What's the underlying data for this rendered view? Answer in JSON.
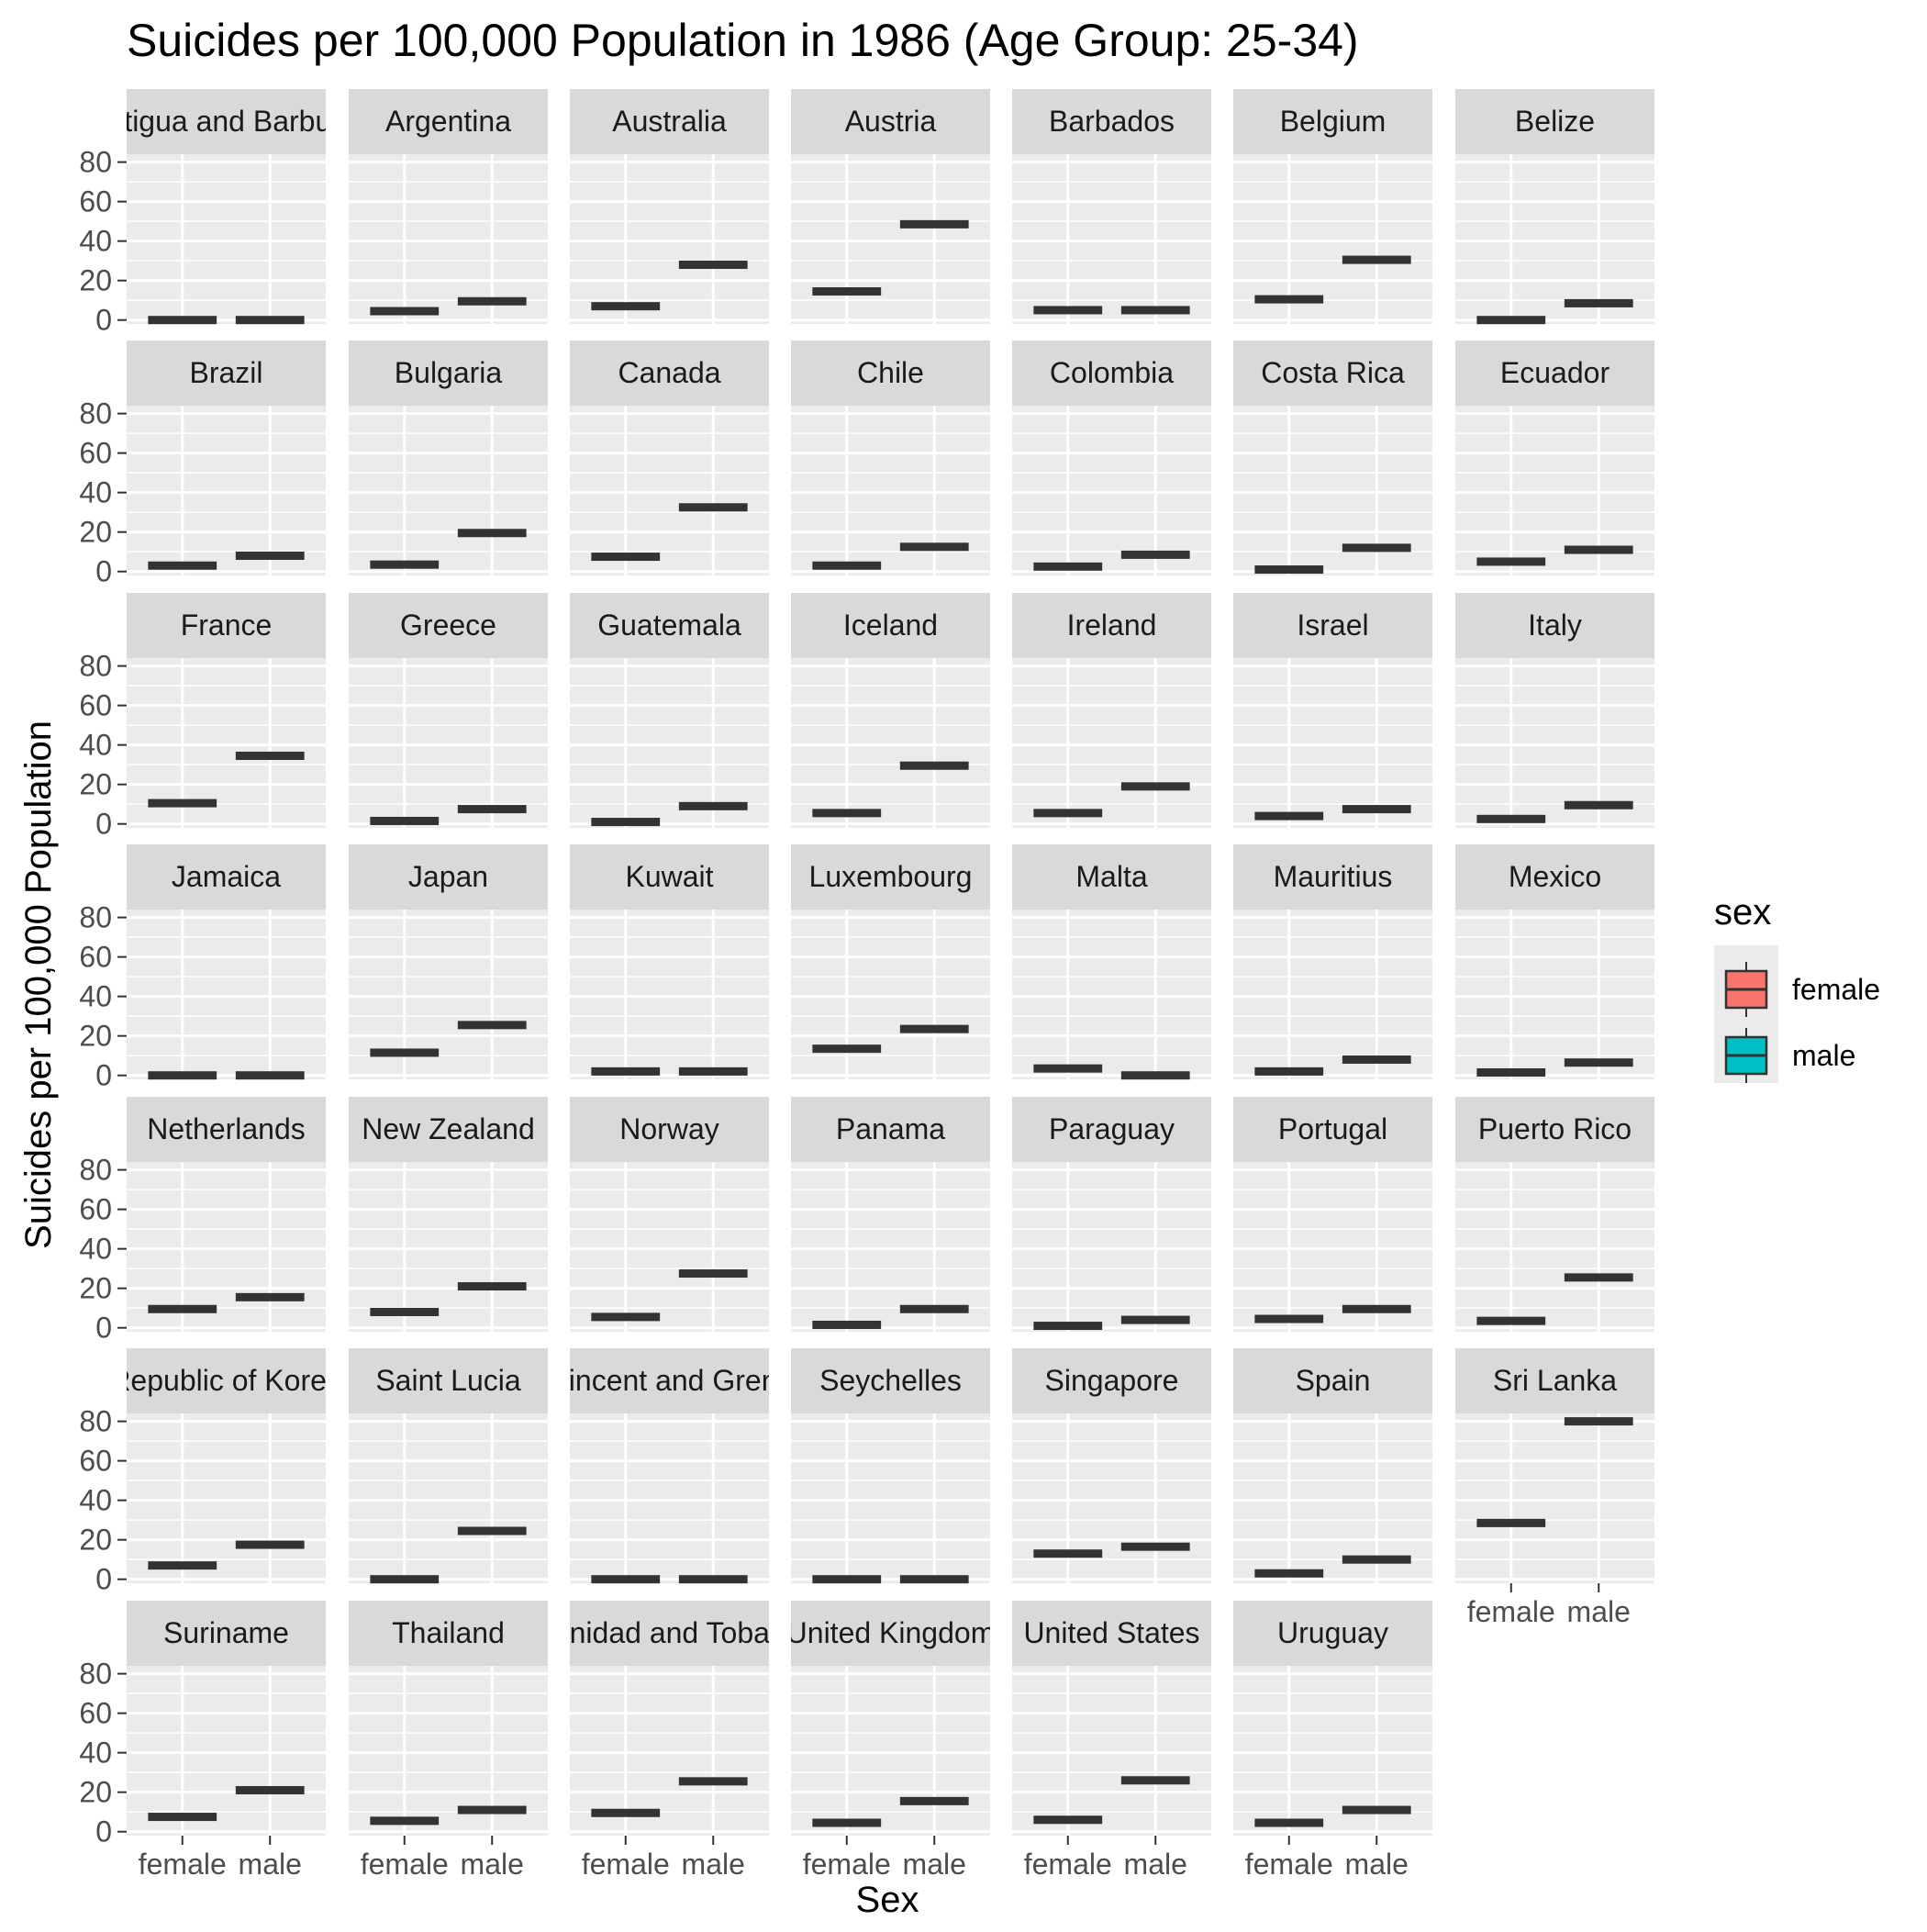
{
  "chart_data": {
    "type": "boxplot",
    "title": "Suicides per 100,000 Population in 1986 (Age Group: 25-34)",
    "xlabel": "Sex",
    "ylabel": "Suicides per 100,000 Population",
    "categories": [
      "female",
      "male"
    ],
    "yticks": [
      0,
      20,
      40,
      60,
      80
    ],
    "ylim": [
      -2,
      84
    ],
    "grid": true,
    "legend": {
      "title": "sex",
      "position": "right",
      "entries": [
        {
          "label": "female",
          "color": "#F8766D"
        },
        {
          "label": "male",
          "color": "#00BFC4"
        }
      ]
    },
    "facets": [
      {
        "label": "Antigua and Barbuda",
        "female": 0.0,
        "male": 0.0
      },
      {
        "label": "Argentina",
        "female": 4.5,
        "male": 9.5
      },
      {
        "label": "Australia",
        "female": 7.0,
        "male": 28.0
      },
      {
        "label": "Austria",
        "female": 14.5,
        "male": 48.5
      },
      {
        "label": "Barbados",
        "female": 5.0,
        "male": 5.0
      },
      {
        "label": "Belgium",
        "female": 10.5,
        "male": 30.5
      },
      {
        "label": "Belize",
        "female": 0.0,
        "male": 8.5
      },
      {
        "label": "Brazil",
        "female": 3.0,
        "male": 8.0
      },
      {
        "label": "Bulgaria",
        "female": 3.5,
        "male": 19.5
      },
      {
        "label": "Canada",
        "female": 7.5,
        "male": 32.5
      },
      {
        "label": "Chile",
        "female": 3.0,
        "male": 12.5
      },
      {
        "label": "Colombia",
        "female": 2.5,
        "male": 8.5
      },
      {
        "label": "Costa Rica",
        "female": 1.0,
        "male": 12.0
      },
      {
        "label": "Ecuador",
        "female": 5.0,
        "male": 11.0
      },
      {
        "label": "France",
        "female": 10.5,
        "male": 34.5
      },
      {
        "label": "Greece",
        "female": 1.5,
        "male": 7.5
      },
      {
        "label": "Guatemala",
        "female": 1.0,
        "male": 9.0
      },
      {
        "label": "Iceland",
        "female": 5.5,
        "male": 29.5
      },
      {
        "label": "Ireland",
        "female": 5.5,
        "male": 19.0
      },
      {
        "label": "Israel",
        "female": 4.0,
        "male": 7.5
      },
      {
        "label": "Italy",
        "female": 2.5,
        "male": 9.5
      },
      {
        "label": "Jamaica",
        "female": 0.0,
        "male": 0.0
      },
      {
        "label": "Japan",
        "female": 11.5,
        "male": 25.5
      },
      {
        "label": "Kuwait",
        "female": 2.0,
        "male": 2.0
      },
      {
        "label": "Luxembourg",
        "female": 13.5,
        "male": 23.5
      },
      {
        "label": "Malta",
        "female": 3.5,
        "male": 0.0
      },
      {
        "label": "Mauritius",
        "female": 2.0,
        "male": 8.0
      },
      {
        "label": "Mexico",
        "female": 1.5,
        "male": 6.5
      },
      {
        "label": "Netherlands",
        "female": 9.5,
        "male": 15.5
      },
      {
        "label": "New Zealand",
        "female": 8.0,
        "male": 21.0
      },
      {
        "label": "Norway",
        "female": 5.5,
        "male": 27.5
      },
      {
        "label": "Panama",
        "female": 1.5,
        "male": 9.5
      },
      {
        "label": "Paraguay",
        "female": 1.0,
        "male": 4.0
      },
      {
        "label": "Portugal",
        "female": 4.5,
        "male": 9.5
      },
      {
        "label": "Puerto Rico",
        "female": 3.5,
        "male": 25.5
      },
      {
        "label": "Republic of Korea",
        "female": 7.0,
        "male": 17.5
      },
      {
        "label": "Saint Lucia",
        "female": 0.0,
        "male": 24.5
      },
      {
        "label": "Saint Vincent and Grenadines",
        "female": 0.0,
        "male": 0.0
      },
      {
        "label": "Seychelles",
        "female": 0.0,
        "male": 0.0
      },
      {
        "label": "Singapore",
        "female": 13.0,
        "male": 16.5
      },
      {
        "label": "Spain",
        "female": 3.0,
        "male": 10.0
      },
      {
        "label": "Sri Lanka",
        "female": 28.5,
        "male": 80.0
      },
      {
        "label": "Suriname",
        "female": 7.5,
        "male": 21.0
      },
      {
        "label": "Thailand",
        "female": 5.5,
        "male": 11.0
      },
      {
        "label": "Trinidad and Tobago",
        "female": 9.5,
        "male": 25.5
      },
      {
        "label": "United Kingdom",
        "female": 4.5,
        "male": 15.5
      },
      {
        "label": "United States",
        "female": 6.0,
        "male": 26.0
      },
      {
        "label": "Uruguay",
        "female": 4.5,
        "male": 11.0
      }
    ]
  }
}
